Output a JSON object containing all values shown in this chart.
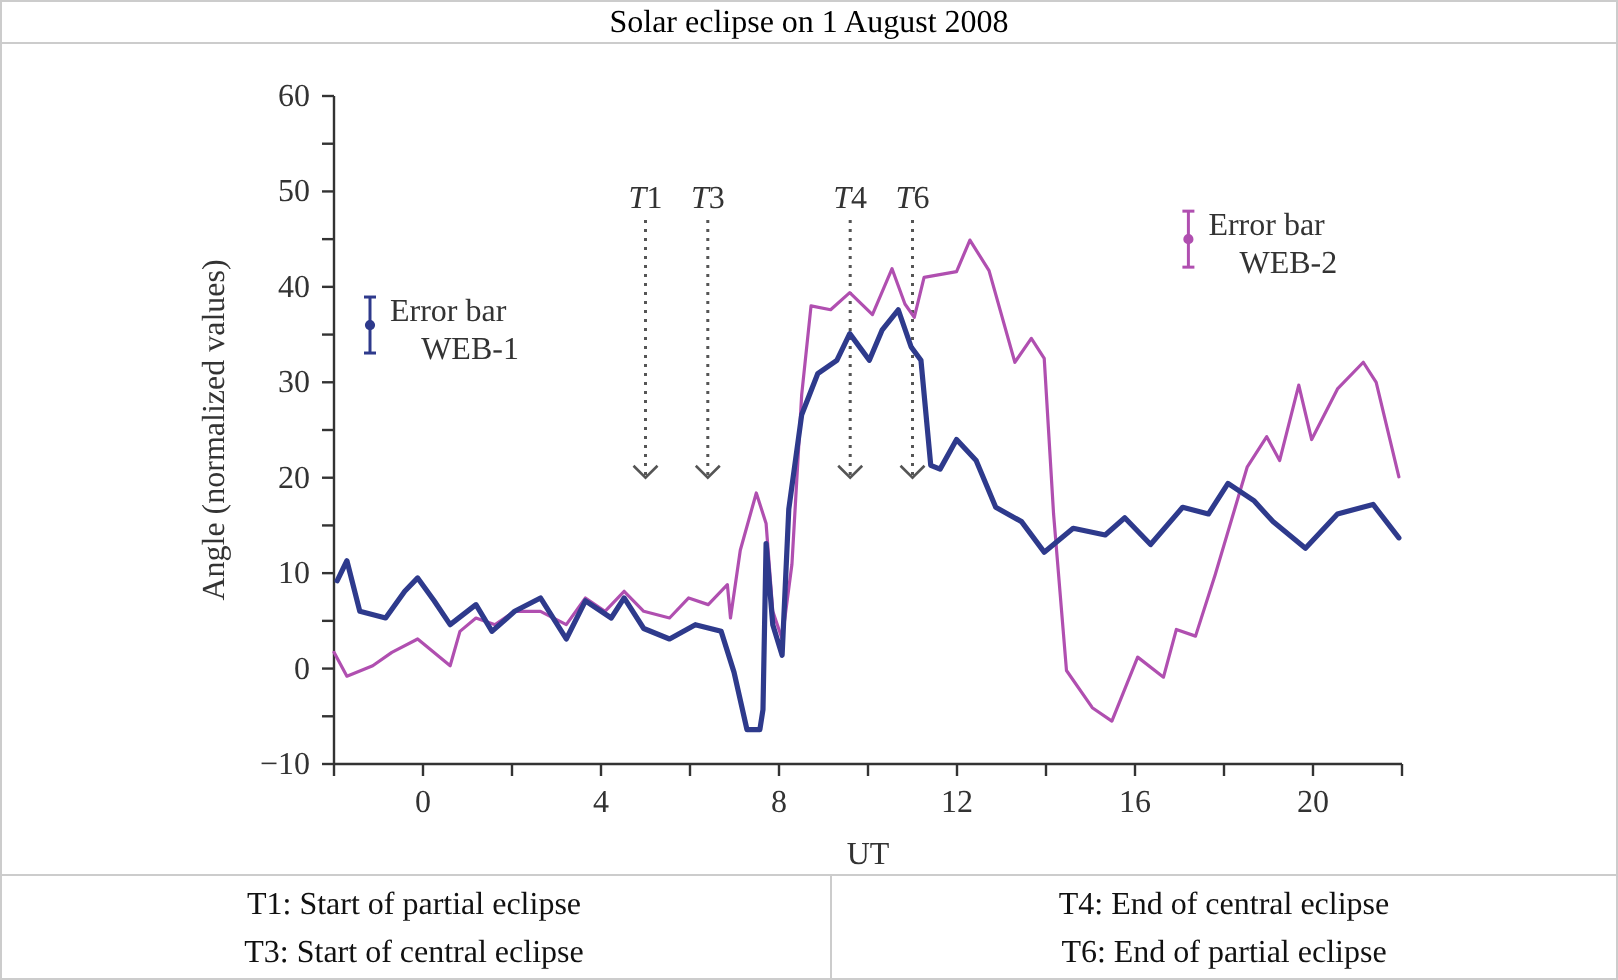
{
  "chart_data": {
    "type": "line",
    "title": "Solar eclipse on 1 August 2008",
    "xlabel": "UT",
    "ylabel": "Angle (normalized values)",
    "xlim": [
      -2,
      22
    ],
    "ylim": [
      -10,
      60
    ],
    "xticks": [
      {
        "value": -2,
        "label": null
      },
      0,
      {
        "value": 2,
        "label": null
      },
      4,
      {
        "value": 6,
        "label": null
      },
      8,
      {
        "value": 10,
        "label": null
      },
      12,
      {
        "value": 14,
        "label": null
      },
      16,
      {
        "value": 18,
        "label": null
      },
      20,
      {
        "value": 22,
        "label": null
      }
    ],
    "yticks": [
      -10,
      {
        "value": -5,
        "label": null
      },
      0,
      {
        "value": 5,
        "label": null
      },
      10,
      {
        "value": 15,
        "label": null
      },
      20,
      {
        "value": 25,
        "label": null
      },
      30,
      {
        "value": 35,
        "label": null
      },
      40,
      {
        "value": 45,
        "label": null
      },
      50,
      {
        "value": 55,
        "label": null
      },
      60
    ],
    "grid": false,
    "legend": "top",
    "marker": "none",
    "line_style": "solid",
    "series": [
      {
        "name": "Error bar WEB-1",
        "color": "#2e3a8c",
        "x": [
          -1.93,
          -1.71,
          -1.42,
          -0.84,
          -0.41,
          -0.12,
          0.25,
          0.61,
          1.19,
          1.55,
          2.06,
          2.64,
          3.22,
          3.65,
          4.23,
          4.52,
          4.96,
          5.54,
          6.12,
          6.7,
          6.99,
          7.28,
          7.57,
          7.64,
          7.71,
          7.86,
          8.07,
          8.22,
          8.51,
          8.87,
          9.3,
          9.59,
          10.03,
          10.32,
          10.68,
          10.97,
          11.19,
          11.41,
          11.62,
          11.99,
          12.43,
          12.87,
          13.45,
          13.96,
          14.61,
          15.33,
          15.77,
          16.35,
          17.07,
          17.65,
          18.09,
          18.67,
          19.1,
          19.83,
          20.55,
          21.35,
          21.93
        ],
        "values": [
          9.2,
          11.3,
          6.0,
          5.3,
          8.1,
          9.5,
          7.1,
          4.6,
          6.7,
          3.9,
          6.0,
          7.4,
          3.1,
          7.1,
          5.3,
          7.4,
          4.2,
          3.1,
          4.6,
          3.9,
          -0.4,
          -6.4,
          -6.4,
          -4.3,
          13.1,
          4.6,
          1.4,
          16.7,
          26.6,
          30.9,
          32.3,
          35.1,
          32.3,
          35.5,
          37.6,
          33.7,
          32.3,
          21.3,
          20.9,
          24.0,
          21.8,
          16.9,
          15.4,
          12.2,
          14.7,
          14.0,
          15.8,
          13.0,
          16.9,
          16.2,
          19.4,
          17.6,
          15.4,
          12.6,
          16.2,
          17.2,
          13.7
        ]
      },
      {
        "name": "Error bar WEB-2",
        "color": "#b04fb0",
        "x": [
          -2,
          -1.71,
          -1.13,
          -0.7,
          -0.12,
          0.61,
          0.83,
          1.19,
          1.62,
          2.06,
          2.64,
          3.22,
          3.65,
          4.09,
          4.52,
          4.96,
          5.54,
          5.97,
          6.41,
          6.84,
          6.91,
          7.13,
          7.49,
          7.71,
          7.86,
          8.07,
          8.29,
          8.51,
          8.72,
          9.16,
          9.59,
          10.1,
          10.54,
          10.83,
          11.04,
          11.26,
          11.99,
          12.29,
          12.72,
          13.3,
          13.67,
          13.96,
          14.17,
          14.46,
          15.04,
          15.48,
          16.06,
          16.64,
          16.93,
          17.36,
          17.8,
          18.52,
          18.96,
          19.25,
          19.68,
          19.97,
          20.55,
          21.13,
          21.42,
          21.93
        ],
        "values": [
          1.7,
          -0.8,
          0.3,
          1.7,
          3.1,
          0.3,
          3.9,
          5.3,
          4.6,
          6.0,
          6.0,
          4.6,
          7.4,
          6.0,
          8.1,
          6.0,
          5.3,
          7.4,
          6.7,
          8.8,
          5.3,
          12.4,
          18.4,
          15.2,
          6.0,
          3.1,
          10.9,
          28.7,
          38.0,
          37.6,
          39.4,
          37.1,
          41.9,
          38.2,
          36.8,
          41.0,
          41.6,
          44.9,
          41.7,
          32.1,
          34.6,
          32.5,
          16.2,
          -0.2,
          -4.1,
          -5.5,
          1.2,
          -0.9,
          4.1,
          3.4,
          9.8,
          21.1,
          24.3,
          21.8,
          29.7,
          24.0,
          29.3,
          32.1,
          30.0,
          20.1
        ]
      }
    ],
    "ref_lines": [
      {
        "axis": "x",
        "value": 5.0,
        "label": "T1",
        "line_style": "dotted",
        "color": "#555555"
      },
      {
        "axis": "x",
        "value": 6.4,
        "label": "T3",
        "line_style": "dotted",
        "color": "#555555"
      },
      {
        "axis": "x",
        "value": 9.6,
        "label": "T4",
        "line_style": "dotted",
        "color": "#555555"
      },
      {
        "axis": "x",
        "value": 11.0,
        "label": "T6",
        "line_style": "dotted",
        "color": "#555555"
      }
    ],
    "annotations": [
      "T1: Start of partial eclipse",
      "T4: End of central eclipse",
      "T3: Start of central eclipse",
      "T6: End of partial eclipse"
    ]
  }
}
